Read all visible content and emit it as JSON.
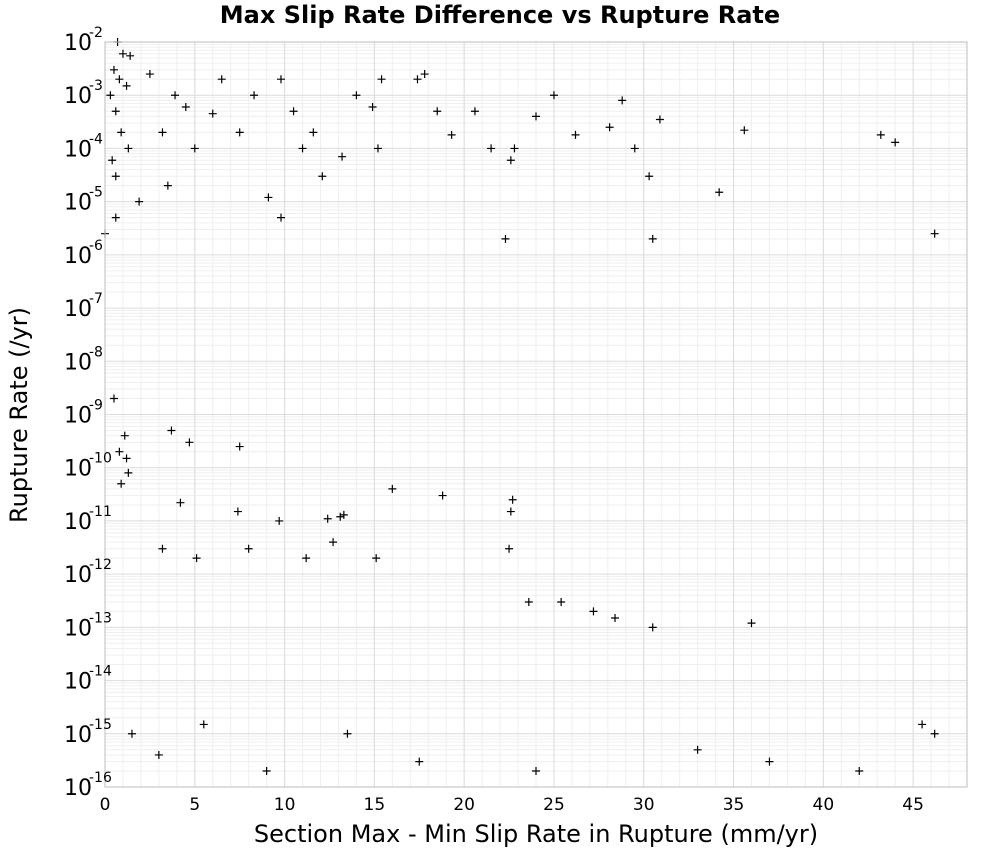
{
  "chart_data": {
    "type": "scatter",
    "title": "Max Slip Rate Difference vs Rupture Rate",
    "xlabel": "Section Max - Min Slip Rate in Rupture (mm/yr)",
    "ylabel": "Rupture Rate (/yr)",
    "xlim": [
      0,
      48
    ],
    "ylim": [
      1e-16,
      0.01
    ],
    "yscale": "log",
    "grid": true,
    "marker": "plus",
    "marker_color": "#000000",
    "x_ticks": [
      0,
      5,
      10,
      15,
      20,
      25,
      30,
      35,
      40,
      45
    ],
    "x_tick_labels": [
      "0",
      "5",
      "10",
      "15",
      "20",
      "25",
      "30",
      "35",
      "40",
      "45"
    ],
    "y_ticks": [
      -16,
      -15,
      -14,
      -13,
      -12,
      -11,
      -10,
      -9,
      -8,
      -7,
      -6,
      -5,
      -4,
      -3,
      -2
    ],
    "y_tick_base": "10",
    "y_tick_exponents": [
      "-16",
      "-15",
      "-14",
      "-13",
      "-12",
      "-11",
      "-10",
      "-9",
      "-8",
      "-7",
      "-6",
      "-5",
      "-4",
      "-3",
      "-2"
    ],
    "series": [
      {
        "points": [
          [
            0.0,
            2.5e-06
          ],
          [
            0.7,
            0.01
          ],
          [
            1.0,
            0.006
          ],
          [
            1.4,
            0.0055
          ],
          [
            0.3,
            0.001
          ],
          [
            0.5,
            0.003
          ],
          [
            0.8,
            0.002
          ],
          [
            1.2,
            0.0015
          ],
          [
            0.6,
            0.0005
          ],
          [
            0.9,
            0.0002
          ],
          [
            1.3,
            0.0001
          ],
          [
            0.4,
            6e-05
          ],
          [
            0.6,
            3e-05
          ],
          [
            0.6,
            5e-06
          ],
          [
            1.9,
            1e-05
          ],
          [
            2.5,
            0.0025
          ],
          [
            3.2,
            0.0002
          ],
          [
            3.5,
            2e-05
          ],
          [
            3.9,
            0.001
          ],
          [
            4.5,
            0.0006
          ],
          [
            5.0,
            0.0001
          ],
          [
            6.0,
            0.00045
          ],
          [
            6.5,
            0.002
          ],
          [
            7.5,
            0.0002
          ],
          [
            8.3,
            0.001
          ],
          [
            9.1,
            1.2e-05
          ],
          [
            9.8,
            0.002
          ],
          [
            9.8,
            5e-06
          ],
          [
            10.5,
            0.0005
          ],
          [
            11.0,
            0.0001
          ],
          [
            11.6,
            0.0002
          ],
          [
            12.1,
            3e-05
          ],
          [
            13.2,
            7e-05
          ],
          [
            14.0,
            0.001
          ],
          [
            14.9,
            0.0006
          ],
          [
            15.2,
            0.0001
          ],
          [
            15.4,
            0.002
          ],
          [
            17.4,
            0.002
          ],
          [
            17.8,
            0.0025
          ],
          [
            18.5,
            0.0005
          ],
          [
            19.3,
            0.00018
          ],
          [
            20.6,
            0.0005
          ],
          [
            21.5,
            0.0001
          ],
          [
            22.3,
            2e-06
          ],
          [
            22.6,
            6e-05
          ],
          [
            22.8,
            0.0001
          ],
          [
            24.0,
            0.0004
          ],
          [
            25.0,
            0.001
          ],
          [
            26.2,
            0.00018
          ],
          [
            28.1,
            0.00025
          ],
          [
            28.8,
            0.0008
          ],
          [
            29.5,
            0.0001
          ],
          [
            30.3,
            3e-05
          ],
          [
            30.5,
            2e-06
          ],
          [
            30.9,
            0.00035
          ],
          [
            34.2,
            1.5e-05
          ],
          [
            35.6,
            0.00022
          ],
          [
            43.2,
            0.00018
          ],
          [
            44.0,
            0.00013
          ],
          [
            46.2,
            2.5e-06
          ],
          [
            0.5,
            2e-09
          ],
          [
            1.1,
            4e-10
          ],
          [
            3.7,
            5e-10
          ],
          [
            4.7,
            3e-10
          ],
          [
            7.5,
            2.5e-10
          ],
          [
            0.8,
            2e-10
          ],
          [
            1.2,
            1.5e-10
          ],
          [
            16.0,
            4e-11
          ],
          [
            18.8,
            3e-11
          ],
          [
            22.7,
            2.5e-11
          ],
          [
            4.2,
            2.2e-11
          ],
          [
            7.4,
            1.5e-11
          ],
          [
            9.7,
            1e-11
          ],
          [
            12.4,
            1.1e-11
          ],
          [
            13.1,
            1.2e-11
          ],
          [
            13.3,
            1.3e-11
          ],
          [
            22.6,
            1.5e-11
          ],
          [
            0.9,
            5e-11
          ],
          [
            1.3,
            8e-11
          ],
          [
            3.2,
            3e-12
          ],
          [
            5.1,
            2e-12
          ],
          [
            8.0,
            3e-12
          ],
          [
            11.2,
            2e-12
          ],
          [
            12.7,
            4e-12
          ],
          [
            15.1,
            2e-12
          ],
          [
            22.5,
            3e-12
          ],
          [
            23.6,
            3e-13
          ],
          [
            25.4,
            3e-13
          ],
          [
            27.2,
            2e-13
          ],
          [
            28.4,
            1.5e-13
          ],
          [
            30.5,
            1e-13
          ],
          [
            36.0,
            1.2e-13
          ],
          [
            1.5,
            1e-15
          ],
          [
            3.0,
            4e-16
          ],
          [
            5.5,
            1.5e-15
          ],
          [
            9.0,
            2e-16
          ],
          [
            13.5,
            1e-15
          ],
          [
            17.5,
            3e-16
          ],
          [
            24.0,
            2e-16
          ],
          [
            33.0,
            5e-16
          ],
          [
            37.0,
            3e-16
          ],
          [
            42.0,
            2e-16
          ],
          [
            45.5,
            1.5e-15
          ],
          [
            46.2,
            1e-15
          ]
        ]
      }
    ]
  }
}
